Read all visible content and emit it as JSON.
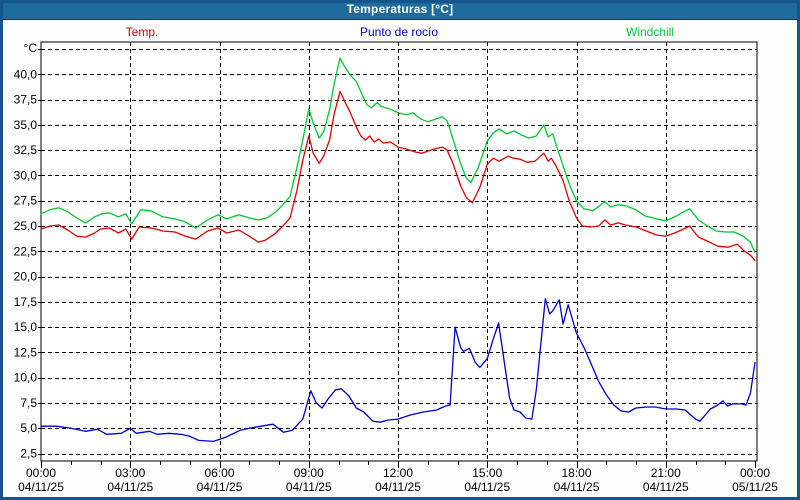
{
  "window": {
    "title": "Temperaturas [°C]",
    "title_bar_color": "#1f6b9e",
    "frame_color": "#14568c"
  },
  "legend": {
    "items": [
      {
        "label": "Temp.",
        "color": "#e00000"
      },
      {
        "label": "Punto de rocío",
        "color": "#0000cc"
      },
      {
        "label": "Windchill",
        "color": "#00c832"
      }
    ]
  },
  "chart_data": {
    "type": "line",
    "title": "Temperaturas [°C]",
    "ylabel": "°C",
    "unit_label": "°C",
    "grid": "dashed-black-on-white",
    "legend_position": "top",
    "ylim": [
      1.7,
      43.2
    ],
    "ygrid_min": 2.5,
    "ygrid_max": 42.5,
    "ygrid_step": 2.5,
    "yticks": [
      {
        "value": 40.0,
        "label": "40,0"
      },
      {
        "value": 37.5,
        "label": "37,5"
      },
      {
        "value": 35.0,
        "label": "35,0"
      },
      {
        "value": 32.5,
        "label": "32,5"
      },
      {
        "value": 30.0,
        "label": "30,0"
      },
      {
        "value": 27.5,
        "label": "27,5"
      },
      {
        "value": 25.0,
        "label": "25,0"
      },
      {
        "value": 22.5,
        "label": "22,5"
      },
      {
        "value": 20.0,
        "label": "20,0"
      },
      {
        "value": 17.5,
        "label": "17,5"
      },
      {
        "value": 15.0,
        "label": "15,0"
      },
      {
        "value": 12.5,
        "label": "12,5"
      },
      {
        "value": 10.0,
        "label": "10,0"
      },
      {
        "value": 7.5,
        "label": "7,5"
      },
      {
        "value": 5.0,
        "label": "5,0"
      },
      {
        "value": 2.5,
        "label": "2,5"
      }
    ],
    "x_hours_range": [
      0,
      24
    ],
    "minor_tick_every_hours": 1,
    "xticks": [
      {
        "hour": 0,
        "time": "00:00",
        "date": "04/11/25"
      },
      {
        "hour": 3,
        "time": "03:00",
        "date": "04/11/25"
      },
      {
        "hour": 6,
        "time": "06:00",
        "date": "04/11/25"
      },
      {
        "hour": 9,
        "time": "09:00",
        "date": "04/11/25"
      },
      {
        "hour": 12,
        "time": "12:00",
        "date": "04/11/25"
      },
      {
        "hour": 15,
        "time": "15:00",
        "date": "04/11/25"
      },
      {
        "hour": 18,
        "time": "18:00",
        "date": "04/11/25"
      },
      {
        "hour": 21,
        "time": "21:00",
        "date": "04/11/25"
      },
      {
        "hour": 24,
        "time": "00:00",
        "date": "05/11/25"
      }
    ],
    "series": [
      {
        "name": "Temp.",
        "color": "#e00000",
        "points": [
          [
            0,
            24.7
          ],
          [
            0.3,
            25.0
          ],
          [
            0.6,
            25.1
          ],
          [
            0.9,
            24.6
          ],
          [
            1.2,
            24.0
          ],
          [
            1.5,
            23.9
          ],
          [
            1.8,
            24.3
          ],
          [
            2.0,
            24.7
          ],
          [
            2.3,
            24.8
          ],
          [
            2.6,
            24.3
          ],
          [
            2.85,
            24.7
          ],
          [
            3.05,
            23.7
          ],
          [
            3.3,
            24.9
          ],
          [
            3.7,
            24.8
          ],
          [
            4.1,
            24.5
          ],
          [
            4.5,
            24.4
          ],
          [
            4.85,
            24.0
          ],
          [
            5.2,
            23.7
          ],
          [
            5.6,
            24.5
          ],
          [
            5.95,
            24.8
          ],
          [
            6.25,
            24.3
          ],
          [
            6.65,
            24.6
          ],
          [
            7.0,
            24.0
          ],
          [
            7.3,
            23.4
          ],
          [
            7.55,
            23.6
          ],
          [
            7.85,
            24.2
          ],
          [
            8.1,
            24.9
          ],
          [
            8.37,
            25.8
          ],
          [
            8.6,
            28.5
          ],
          [
            8.8,
            31.5
          ],
          [
            9.0,
            33.9
          ],
          [
            9.15,
            32.2
          ],
          [
            9.35,
            31.2
          ],
          [
            9.5,
            31.9
          ],
          [
            9.7,
            33.5
          ],
          [
            9.85,
            36.0
          ],
          [
            10.05,
            38.3
          ],
          [
            10.2,
            37.4
          ],
          [
            10.4,
            36.2
          ],
          [
            10.6,
            34.8
          ],
          [
            10.75,
            33.9
          ],
          [
            10.9,
            33.5
          ],
          [
            11.05,
            33.9
          ],
          [
            11.2,
            33.3
          ],
          [
            11.35,
            33.6
          ],
          [
            11.5,
            33.2
          ],
          [
            11.75,
            33.3
          ],
          [
            12.0,
            32.8
          ],
          [
            12.3,
            32.6
          ],
          [
            12.6,
            32.3
          ],
          [
            12.8,
            32.2
          ],
          [
            13.0,
            32.4
          ],
          [
            13.2,
            32.6
          ],
          [
            13.5,
            32.8
          ],
          [
            13.65,
            32.5
          ],
          [
            13.85,
            31.2
          ],
          [
            14.1,
            29.0
          ],
          [
            14.3,
            27.8
          ],
          [
            14.5,
            27.3
          ],
          [
            14.75,
            28.8
          ],
          [
            15.0,
            31.1
          ],
          [
            15.2,
            31.7
          ],
          [
            15.4,
            31.4
          ],
          [
            15.7,
            31.9
          ],
          [
            15.9,
            31.7
          ],
          [
            16.1,
            31.6
          ],
          [
            16.35,
            31.3
          ],
          [
            16.6,
            31.4
          ],
          [
            16.9,
            32.2
          ],
          [
            17.05,
            31.4
          ],
          [
            17.15,
            31.7
          ],
          [
            17.3,
            31.0
          ],
          [
            17.55,
            29.5
          ],
          [
            17.75,
            27.5
          ],
          [
            18.0,
            25.8
          ],
          [
            18.2,
            25.0
          ],
          [
            18.5,
            24.9
          ],
          [
            18.75,
            25.0
          ],
          [
            18.95,
            25.6
          ],
          [
            19.15,
            25.1
          ],
          [
            19.4,
            25.3
          ],
          [
            19.65,
            25.1
          ],
          [
            20.0,
            24.9
          ],
          [
            20.35,
            24.5
          ],
          [
            20.7,
            24.1
          ],
          [
            21.0,
            24.0
          ],
          [
            21.3,
            24.3
          ],
          [
            21.6,
            24.7
          ],
          [
            21.8,
            25.0
          ],
          [
            22.1,
            23.9
          ],
          [
            22.4,
            23.5
          ],
          [
            22.75,
            23.0
          ],
          [
            23.1,
            22.9
          ],
          [
            23.4,
            23.2
          ],
          [
            23.65,
            22.5
          ],
          [
            23.85,
            22.1
          ],
          [
            24.0,
            21.6
          ]
        ]
      },
      {
        "name": "Punto de rocío",
        "color": "#0000cc",
        "points": [
          [
            0,
            5.2
          ],
          [
            0.5,
            5.2
          ],
          [
            1.0,
            5.0
          ],
          [
            1.5,
            4.7
          ],
          [
            1.9,
            4.9
          ],
          [
            2.2,
            4.4
          ],
          [
            2.7,
            4.5
          ],
          [
            3.0,
            5.0
          ],
          [
            3.2,
            4.5
          ],
          [
            3.65,
            4.7
          ],
          [
            3.9,
            4.4
          ],
          [
            4.3,
            4.5
          ],
          [
            4.7,
            4.4
          ],
          [
            5.0,
            4.2
          ],
          [
            5.3,
            3.8
          ],
          [
            5.8,
            3.7
          ],
          [
            6.2,
            4.1
          ],
          [
            6.7,
            4.8
          ],
          [
            7.0,
            5.0
          ],
          [
            7.4,
            5.2
          ],
          [
            7.8,
            5.4
          ],
          [
            8.15,
            4.6
          ],
          [
            8.45,
            4.8
          ],
          [
            8.8,
            5.9
          ],
          [
            9.07,
            8.7
          ],
          [
            9.25,
            7.5
          ],
          [
            9.45,
            7.0
          ],
          [
            9.65,
            7.9
          ],
          [
            9.9,
            8.8
          ],
          [
            10.1,
            8.9
          ],
          [
            10.35,
            8.2
          ],
          [
            10.6,
            7.0
          ],
          [
            10.85,
            6.6
          ],
          [
            11.15,
            5.7
          ],
          [
            11.4,
            5.6
          ],
          [
            11.65,
            5.8
          ],
          [
            12.0,
            5.9
          ],
          [
            12.4,
            6.3
          ],
          [
            12.85,
            6.6
          ],
          [
            13.3,
            6.8
          ],
          [
            13.6,
            7.2
          ],
          [
            13.75,
            7.3
          ],
          [
            13.92,
            15.0
          ],
          [
            14.1,
            13.0
          ],
          [
            14.2,
            12.6
          ],
          [
            14.4,
            12.9
          ],
          [
            14.6,
            11.5
          ],
          [
            14.75,
            11.0
          ],
          [
            15.0,
            11.9
          ],
          [
            15.2,
            13.8
          ],
          [
            15.38,
            15.4
          ],
          [
            15.55,
            12.0
          ],
          [
            15.75,
            8.0
          ],
          [
            15.9,
            6.8
          ],
          [
            16.1,
            6.6
          ],
          [
            16.3,
            6.0
          ],
          [
            16.5,
            5.9
          ],
          [
            16.65,
            8.8
          ],
          [
            16.95,
            17.8
          ],
          [
            17.1,
            16.3
          ],
          [
            17.2,
            16.6
          ],
          [
            17.42,
            17.7
          ],
          [
            17.55,
            15.3
          ],
          [
            17.72,
            17.2
          ],
          [
            18.0,
            14.4
          ],
          [
            18.25,
            13.0
          ],
          [
            18.5,
            11.3
          ],
          [
            18.75,
            9.6
          ],
          [
            19.0,
            8.3
          ],
          [
            19.25,
            7.3
          ],
          [
            19.5,
            6.7
          ],
          [
            19.75,
            6.6
          ],
          [
            20.0,
            7.0
          ],
          [
            20.35,
            7.1
          ],
          [
            20.65,
            7.1
          ],
          [
            21.0,
            6.9
          ],
          [
            21.35,
            6.9
          ],
          [
            21.65,
            6.8
          ],
          [
            22.0,
            5.9
          ],
          [
            22.15,
            5.7
          ],
          [
            22.5,
            6.9
          ],
          [
            22.75,
            7.3
          ],
          [
            22.92,
            7.7
          ],
          [
            23.08,
            7.2
          ],
          [
            23.25,
            7.4
          ],
          [
            23.55,
            7.4
          ],
          [
            23.7,
            7.3
          ],
          [
            23.85,
            8.5
          ],
          [
            24.0,
            11.5
          ]
        ]
      },
      {
        "name": "Windchill",
        "color": "#00c832",
        "points": [
          [
            0,
            26.2
          ],
          [
            0.3,
            26.6
          ],
          [
            0.6,
            26.8
          ],
          [
            0.9,
            26.4
          ],
          [
            1.2,
            25.8
          ],
          [
            1.5,
            25.3
          ],
          [
            1.8,
            25.9
          ],
          [
            2.05,
            26.2
          ],
          [
            2.3,
            26.3
          ],
          [
            2.6,
            25.9
          ],
          [
            2.85,
            26.2
          ],
          [
            3.05,
            25.2
          ],
          [
            3.35,
            26.6
          ],
          [
            3.7,
            26.5
          ],
          [
            4.1,
            25.9
          ],
          [
            4.5,
            25.7
          ],
          [
            4.85,
            25.4
          ],
          [
            5.2,
            24.8
          ],
          [
            5.6,
            25.6
          ],
          [
            5.95,
            26.1
          ],
          [
            6.25,
            25.7
          ],
          [
            6.65,
            26.1
          ],
          [
            7.0,
            25.8
          ],
          [
            7.3,
            25.6
          ],
          [
            7.6,
            25.8
          ],
          [
            7.9,
            26.4
          ],
          [
            8.1,
            27.0
          ],
          [
            8.37,
            27.9
          ],
          [
            8.6,
            30.8
          ],
          [
            8.8,
            33.5
          ],
          [
            9.0,
            36.6
          ],
          [
            9.15,
            35.2
          ],
          [
            9.35,
            33.7
          ],
          [
            9.5,
            34.3
          ],
          [
            9.7,
            36.5
          ],
          [
            9.85,
            39.0
          ],
          [
            10.05,
            41.6
          ],
          [
            10.2,
            40.8
          ],
          [
            10.4,
            39.9
          ],
          [
            10.6,
            39.3
          ],
          [
            10.75,
            38.3
          ],
          [
            10.95,
            37.0
          ],
          [
            11.1,
            36.7
          ],
          [
            11.3,
            37.2
          ],
          [
            11.45,
            36.8
          ],
          [
            11.7,
            36.6
          ],
          [
            12.0,
            36.2
          ],
          [
            12.3,
            36.0
          ],
          [
            12.5,
            36.2
          ],
          [
            12.75,
            35.6
          ],
          [
            13.0,
            35.3
          ],
          [
            13.2,
            35.5
          ],
          [
            13.5,
            35.8
          ],
          [
            13.65,
            35.4
          ],
          [
            13.85,
            33.6
          ],
          [
            14.1,
            31.2
          ],
          [
            14.3,
            29.7
          ],
          [
            14.45,
            29.3
          ],
          [
            14.7,
            30.8
          ],
          [
            15.0,
            33.4
          ],
          [
            15.2,
            34.2
          ],
          [
            15.4,
            34.6
          ],
          [
            15.65,
            34.1
          ],
          [
            15.9,
            34.4
          ],
          [
            16.15,
            34.0
          ],
          [
            16.4,
            33.7
          ],
          [
            16.65,
            33.9
          ],
          [
            16.9,
            35.0
          ],
          [
            17.05,
            33.8
          ],
          [
            17.2,
            34.1
          ],
          [
            17.35,
            32.7
          ],
          [
            17.6,
            30.5
          ],
          [
            17.8,
            28.8
          ],
          [
            18.0,
            27.5
          ],
          [
            18.25,
            26.7
          ],
          [
            18.55,
            26.5
          ],
          [
            18.95,
            27.4
          ],
          [
            19.15,
            26.9
          ],
          [
            19.4,
            27.1
          ],
          [
            19.65,
            27.0
          ],
          [
            20.0,
            26.6
          ],
          [
            20.3,
            26.0
          ],
          [
            20.7,
            25.7
          ],
          [
            21.0,
            25.5
          ],
          [
            21.3,
            25.9
          ],
          [
            21.6,
            26.4
          ],
          [
            21.8,
            26.7
          ],
          [
            22.1,
            25.6
          ],
          [
            22.4,
            25.0
          ],
          [
            22.7,
            24.5
          ],
          [
            23.0,
            24.4
          ],
          [
            23.3,
            24.4
          ],
          [
            23.6,
            24.0
          ],
          [
            23.85,
            23.4
          ],
          [
            24.0,
            22.4
          ]
        ]
      }
    ]
  }
}
